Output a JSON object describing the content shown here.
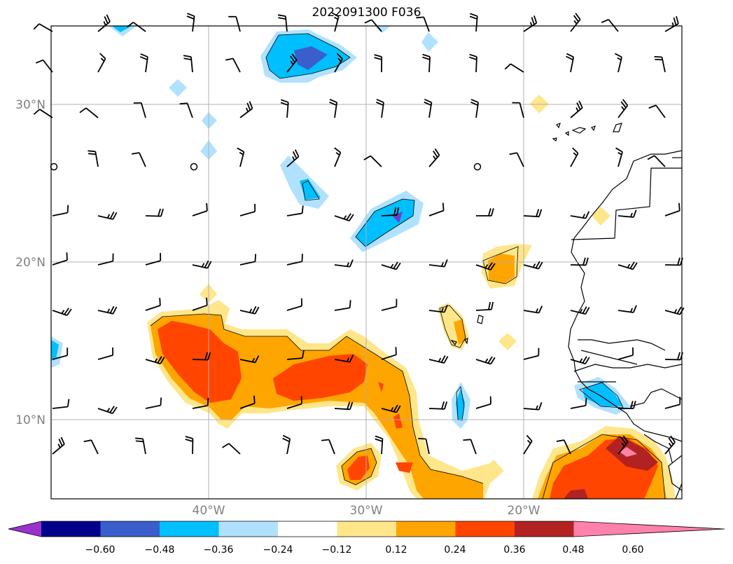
{
  "title": "2022091300 F036",
  "map": {
    "lat_labels": [
      "30°N",
      "20°N",
      "10°N"
    ],
    "lat_values": [
      30,
      20,
      10
    ],
    "lon_labels": [
      "40°W",
      "30°W",
      "20°W"
    ],
    "lon_values": [
      -40,
      -30,
      -20
    ],
    "extent": {
      "lon": [
        -50,
        -10
      ],
      "lat": [
        5,
        35
      ]
    }
  },
  "colorbar": {
    "tick_labels": [
      "−0.60",
      "−0.48",
      "−0.36",
      "−0.24",
      "−0.12",
      "0.12",
      "0.24",
      "0.36",
      "0.48",
      "0.60"
    ],
    "colors": [
      "#9932cc",
      "#00008b",
      "#3a5fcd",
      "#00bfff",
      "#b0e2ff",
      "#ffffff",
      "#ffe68a",
      "#ffa500",
      "#ff4500",
      "#b22222",
      "#ff82ab"
    ]
  }
}
